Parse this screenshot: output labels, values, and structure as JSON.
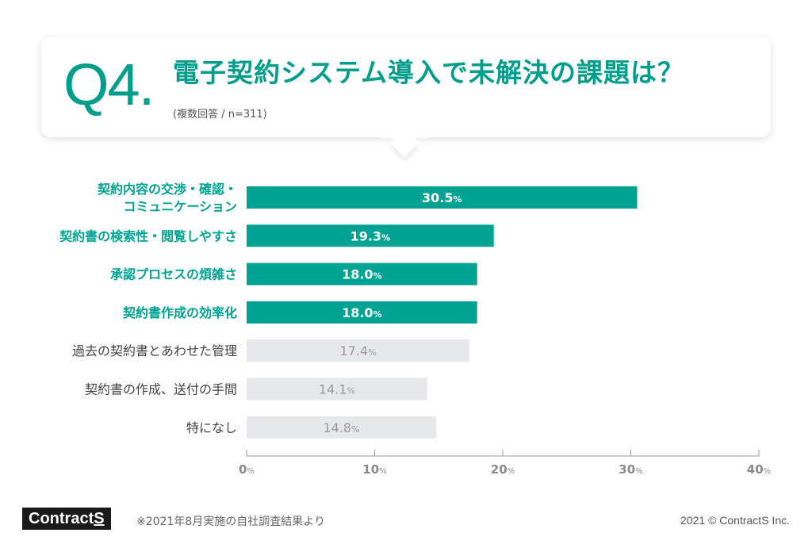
{
  "header": {
    "q_number": "Q4.",
    "title": "電子契約システム導入で未解決の課題は？",
    "subtitle": "(複数回答 / n=311)"
  },
  "chart_data": {
    "type": "bar",
    "orientation": "horizontal",
    "categories": [
      [
        "契約内容の交渉・確認・",
        "コミュニケーション"
      ],
      [
        "契約書の検索性・閲覧しやすさ"
      ],
      [
        "承認プロセスの煩雑さ"
      ],
      [
        "契約書作成の効率化"
      ],
      [
        "過去の契約書とあわせた管理"
      ],
      [
        "契約書の作成、送付の手間"
      ],
      [
        "特になし"
      ]
    ],
    "values": [
      30.5,
      19.3,
      18.0,
      18.0,
      17.4,
      14.1,
      14.8
    ],
    "value_labels": [
      "30.5",
      "19.3",
      "18.0",
      "18.0",
      "17.4",
      "14.1",
      "14.8"
    ],
    "unit": "%",
    "highlighted": [
      true,
      true,
      true,
      true,
      false,
      false,
      false
    ],
    "xlim": [
      0,
      40
    ],
    "xticks": [
      0,
      10,
      20,
      30,
      40
    ],
    "tick_labels": [
      "0",
      "10",
      "20",
      "30",
      "40"
    ],
    "colors": {
      "highlight": "#00a393",
      "muted": "#e6e8ec",
      "highlight_label": "#00a393",
      "muted_label": "#444444",
      "highlight_value": "#ffffff",
      "muted_value": "#9a9a9a",
      "axis": "#9a9a9a"
    }
  },
  "footer": {
    "logo_text": "Contract",
    "logo_s": "S",
    "note": "※2021年8月実施の自社調査結果より",
    "copyright": "2021 © ContractS Inc."
  }
}
